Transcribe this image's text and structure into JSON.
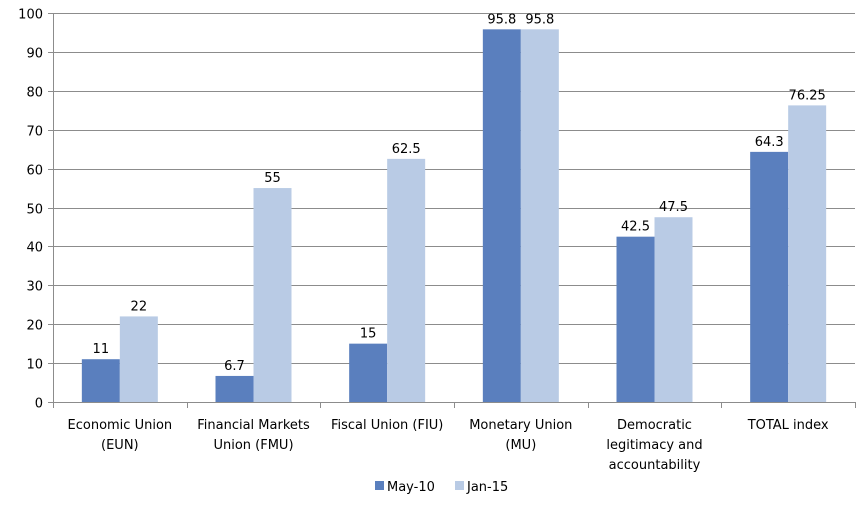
{
  "chart_data": {
    "type": "bar",
    "categories": [
      [
        "Economic Union",
        "(EUN)"
      ],
      [
        "Financial Markets",
        "Union (FMU)"
      ],
      [
        "Fiscal Union (FIU)"
      ],
      [
        "Monetary Union",
        "(MU)"
      ],
      [
        "Democratic",
        "legitimacy and",
        "accountability"
      ],
      [
        "TOTAL index"
      ]
    ],
    "series": [
      {
        "name": "May-10",
        "color": "#5a7fbe",
        "values": [
          11,
          6.7,
          15,
          95.8,
          42.5,
          64.3
        ],
        "labels": [
          "11",
          "6.7",
          "15",
          "95.8",
          "42.5",
          "64.3"
        ]
      },
      {
        "name": "Jan-15",
        "color": "#b9cbe5",
        "values": [
          22,
          55,
          62.5,
          95.8,
          47.5,
          76.25
        ],
        "labels": [
          "22",
          "55",
          "62.5",
          "95.8",
          "47.5",
          "76.25"
        ]
      }
    ],
    "ylim": [
      0,
      100
    ],
    "yticks": [
      0,
      10,
      20,
      30,
      40,
      50,
      60,
      70,
      80,
      90,
      100
    ],
    "grid": true,
    "legend": "bottom-center"
  }
}
